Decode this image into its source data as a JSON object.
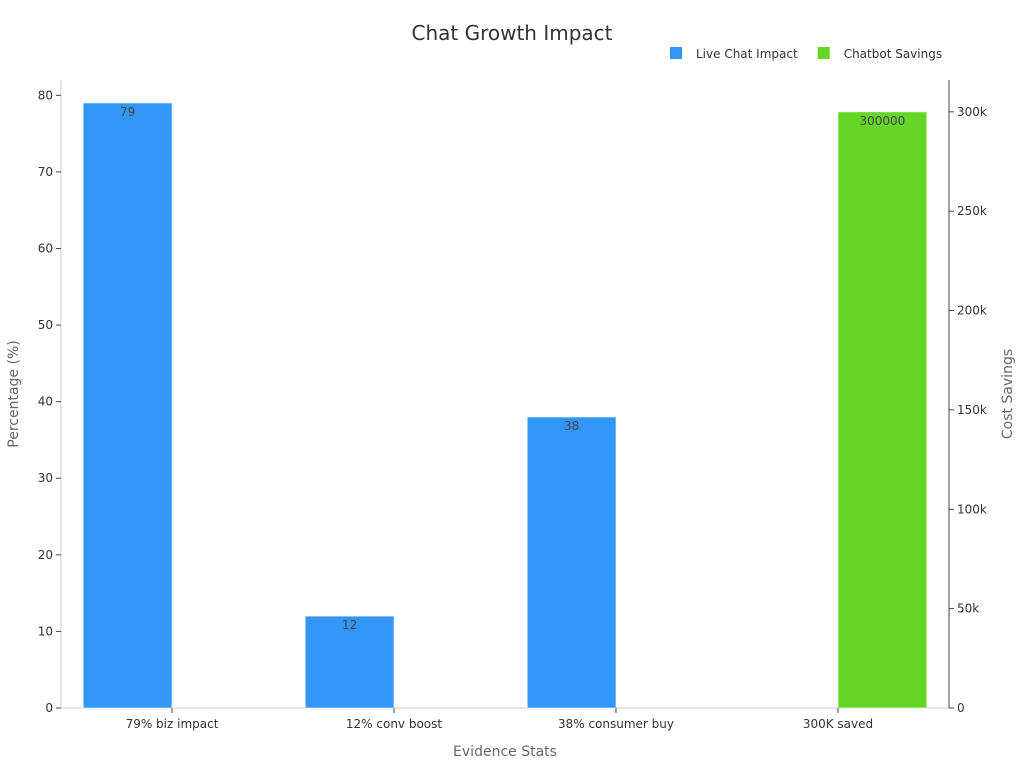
{
  "chart_data": {
    "type": "bar",
    "title": "Chat Growth Impact",
    "xlabel": "Evidence Stats",
    "ylabel": "Percentage (%)",
    "y2label": "Cost Savings",
    "categories": [
      "79% biz impact",
      "12% conv boost",
      "38% consumer buy",
      "300K saved"
    ],
    "ylim": [
      0,
      82
    ],
    "y2lim": [
      0,
      316000
    ],
    "yticks": [
      0,
      10,
      20,
      30,
      40,
      50,
      60,
      70,
      80
    ],
    "y2ticks": [
      {
        "value": 0,
        "label": "0"
      },
      {
        "value": 50000,
        "label": "50k"
      },
      {
        "value": 100000,
        "label": "100k"
      },
      {
        "value": 150000,
        "label": "150k"
      },
      {
        "value": 200000,
        "label": "200k"
      },
      {
        "value": 250000,
        "label": "250k"
      },
      {
        "value": 300000,
        "label": "300k"
      }
    ],
    "legend_position": "top-right",
    "grid": false,
    "series": [
      {
        "name": "Live Chat Impact",
        "axis": "left",
        "color": "#3296f8",
        "values": [
          79,
          12,
          38,
          null
        ]
      },
      {
        "name": "Chatbot Savings",
        "axis": "right",
        "color": "#66d626",
        "values": [
          null,
          null,
          null,
          300000
        ]
      }
    ]
  }
}
